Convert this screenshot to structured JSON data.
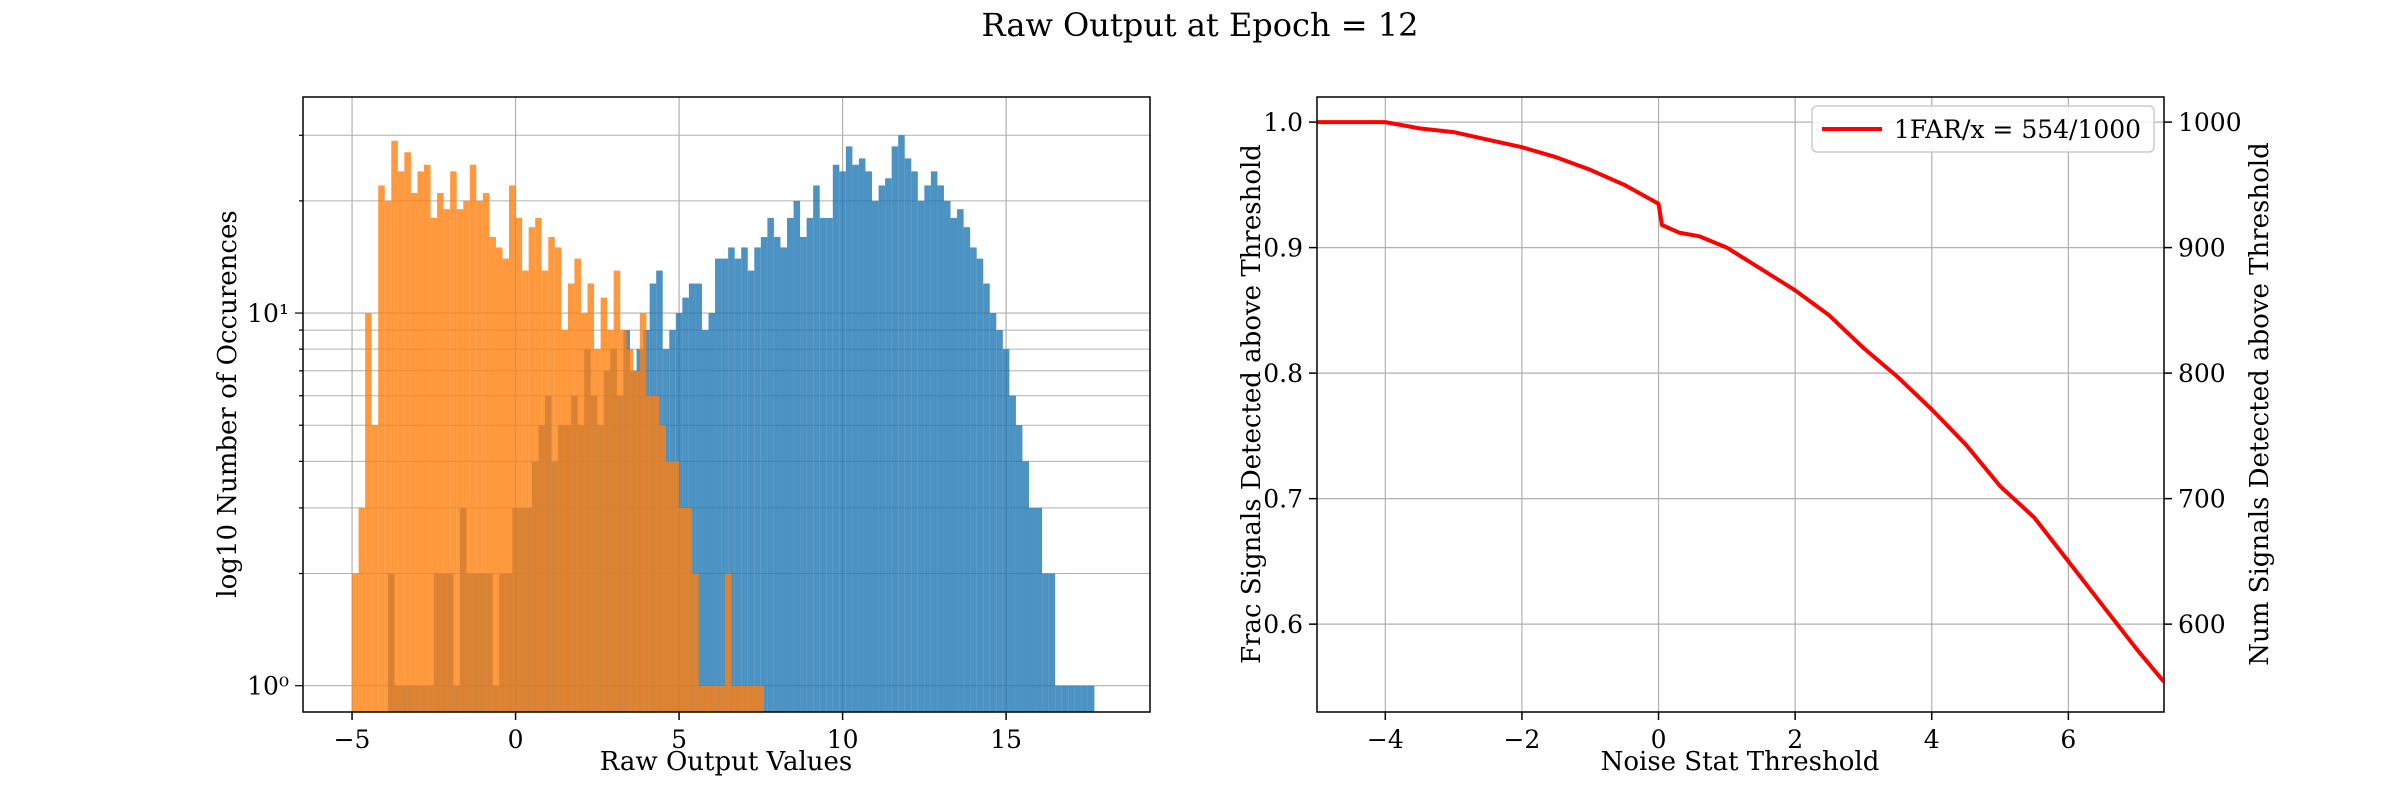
{
  "figure": {
    "title": "Raw Output at Epoch = 12"
  },
  "chart_data": [
    {
      "type": "histogram",
      "title": "",
      "xlabel": "Raw Output Values",
      "ylabel": "log10 Number of Occurences",
      "y_scale": "log",
      "xlim": [
        -6.5,
        19.4
      ],
      "ylim": [
        0.85,
        38
      ],
      "x_ticks": [
        -5,
        0,
        5,
        10,
        15
      ],
      "x_tick_labels": [
        "−5",
        "0",
        "5",
        "10",
        "15"
      ],
      "y_ticks": [
        1,
        10
      ],
      "y_tick_labels": [
        "10⁰",
        "10¹"
      ],
      "grid": true,
      "legend": "none",
      "bin_width": 0.2,
      "series": [
        {
          "color": "#1f77b4",
          "bins_start": -3.9,
          "counts": [
            2,
            1,
            1,
            1,
            1,
            1,
            1,
            2,
            2,
            2,
            1,
            3,
            2,
            2,
            2,
            2,
            1,
            2,
            2,
            3,
            3,
            3,
            4,
            5,
            6,
            4,
            5,
            5,
            6,
            5,
            8,
            6,
            5,
            7,
            8,
            6,
            9,
            7,
            8,
            9,
            12,
            13,
            8,
            9,
            10,
            11,
            12,
            12,
            9,
            10,
            14,
            14,
            15,
            14,
            15,
            13,
            15,
            16,
            18,
            16,
            15,
            18,
            20,
            16,
            18,
            22,
            18,
            18,
            25,
            24,
            28,
            25,
            26,
            24,
            20,
            22,
            23,
            28,
            30,
            26,
            24,
            20,
            22,
            24,
            22,
            20,
            18,
            19,
            17,
            15,
            14,
            12,
            10,
            9,
            8,
            6,
            5,
            4,
            3,
            3,
            2,
            2,
            1,
            1,
            1,
            1,
            1,
            1
          ]
        },
        {
          "color": "#ff7f0e",
          "bins_start": -5.0,
          "counts": [
            2,
            3,
            10,
            5,
            22,
            20,
            29,
            24,
            27,
            21,
            24,
            25,
            18,
            21,
            19,
            24,
            19,
            20,
            25,
            20,
            21,
            16,
            15,
            14,
            22,
            18,
            13,
            17,
            18,
            13,
            16,
            15,
            9,
            12,
            14,
            10,
            12,
            8,
            11,
            9,
            13,
            9,
            8,
            7,
            10,
            6,
            6,
            5,
            4,
            4,
            3,
            3,
            2,
            1,
            1,
            1,
            1,
            2,
            1,
            1,
            1,
            1,
            1
          ]
        }
      ]
    },
    {
      "type": "line",
      "title": "",
      "xlabel": "Noise Stat Threshold",
      "ylabel": "Frac Signals Detected above Threshold",
      "ylabel_right": "Num Signals Detected above Threshold",
      "xlim": [
        -5,
        7.4
      ],
      "ylim": [
        0.53,
        1.02
      ],
      "x_ticks": [
        -4,
        -2,
        0,
        2,
        4,
        6
      ],
      "x_tick_labels": [
        "−4",
        "−2",
        "0",
        "2",
        "4",
        "6"
      ],
      "y_ticks": [
        0.6,
        0.7,
        0.8,
        0.9,
        1.0
      ],
      "y_tick_labels": [
        "0.6",
        "0.7",
        "0.8",
        "0.9",
        "1.0"
      ],
      "y2_ticks": [
        600,
        700,
        800,
        900,
        1000
      ],
      "y2_tick_labels": [
        "600",
        "700",
        "800",
        "900",
        "1000"
      ],
      "grid": true,
      "legend": "top-right",
      "series": [
        {
          "name": "1FAR/x = 554/1000",
          "color": "#ff0000",
          "x": [
            -5.0,
            -4.5,
            -4.0,
            -3.8,
            -3.5,
            -3.0,
            -2.5,
            -2.0,
            -1.5,
            -1.0,
            -0.5,
            0.0,
            0.05,
            0.3,
            0.6,
            1.0,
            1.5,
            2.0,
            2.5,
            3.0,
            3.5,
            4.0,
            4.5,
            5.0,
            5.5,
            6.0,
            6.5,
            7.0,
            7.4
          ],
          "y": [
            1.0,
            1.0,
            1.0,
            0.998,
            0.995,
            0.992,
            0.986,
            0.98,
            0.972,
            0.962,
            0.95,
            0.935,
            0.918,
            0.912,
            0.909,
            0.9,
            0.883,
            0.866,
            0.846,
            0.82,
            0.797,
            0.771,
            0.743,
            0.71,
            0.685,
            0.65,
            0.615,
            0.58,
            0.554
          ]
        }
      ]
    }
  ]
}
